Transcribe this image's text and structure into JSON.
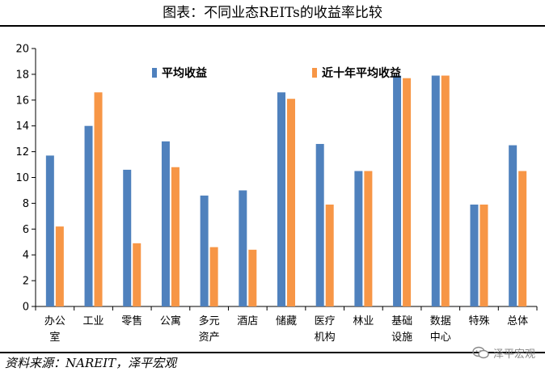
{
  "page": {
    "title": "图表：不同业态REITs的收益率比较",
    "source": "资料来源：NAREIT，泽平宏观",
    "watermark": "泽平宏观"
  },
  "colors": {
    "series1": "#4f81bd",
    "series2": "#f79646",
    "axis": "#000000"
  },
  "icons": {
    "watermark": "wechat-icon"
  },
  "chart_data": {
    "type": "bar",
    "categories": [
      [
        "办公",
        "室"
      ],
      [
        "工业"
      ],
      [
        "零售"
      ],
      [
        "公寓"
      ],
      [
        "多元",
        "资产"
      ],
      [
        "酒店"
      ],
      [
        "储藏"
      ],
      [
        "医疗",
        "机构"
      ],
      [
        "林业"
      ],
      [
        "基础",
        "设施"
      ],
      [
        "数据",
        "中心"
      ],
      [
        "特殊"
      ],
      [
        "总体"
      ]
    ],
    "series": [
      {
        "name": "平均收益",
        "values": [
          11.7,
          14.0,
          10.6,
          12.8,
          8.6,
          9.0,
          16.6,
          12.6,
          10.5,
          17.9,
          17.9,
          7.9,
          12.5
        ]
      },
      {
        "name": "近十年平均收益",
        "values": [
          6.2,
          16.6,
          4.9,
          10.8,
          4.6,
          4.4,
          16.1,
          7.9,
          10.5,
          17.7,
          17.9,
          7.9,
          10.5
        ]
      }
    ],
    "ylim": [
      0,
      20
    ],
    "yticks": [
      0,
      2,
      4,
      6,
      8,
      10,
      12,
      14,
      16,
      18,
      20
    ],
    "xlabel": "",
    "ylabel": "",
    "legend": "top-center",
    "grid": false
  }
}
